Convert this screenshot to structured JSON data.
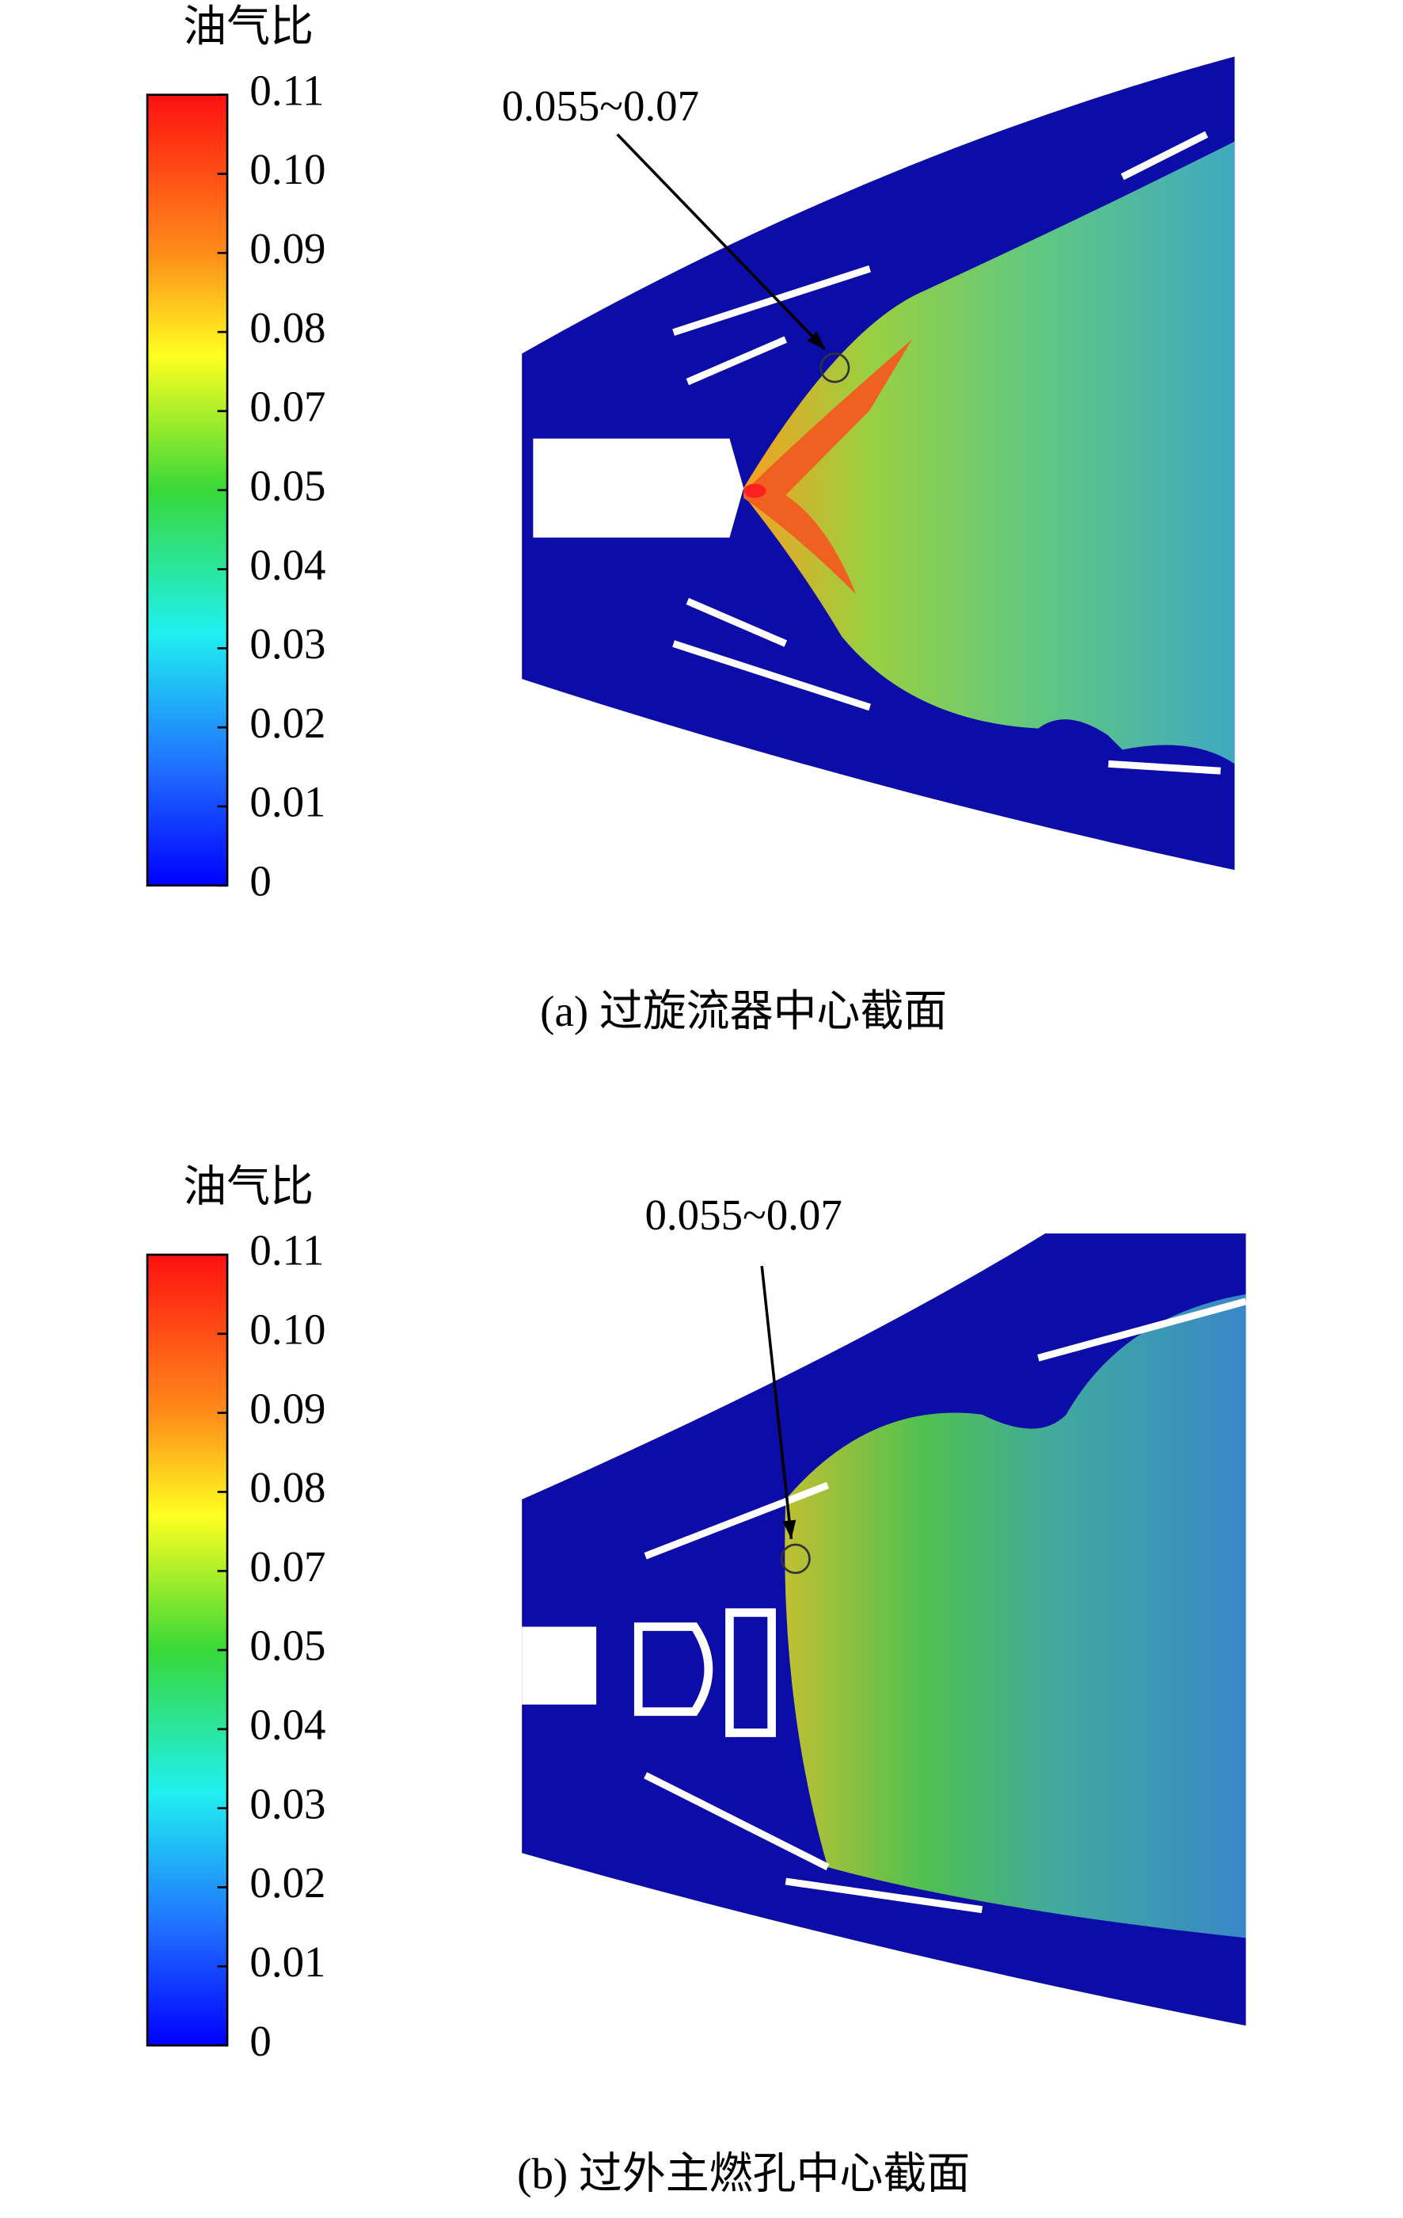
{
  "panels": [
    {
      "colorbar": {
        "title": "油气比",
        "ticks": [
          "0.11",
          "0.10",
          "0.09",
          "0.08",
          "0.07",
          "0.05",
          "0.04",
          "0.03",
          "0.02",
          "0.01",
          "0"
        ]
      },
      "annotation": "0.055~0.07",
      "caption": "(a) 过旋流器中心截面"
    },
    {
      "colorbar": {
        "title": "油气比",
        "ticks": [
          "0.11",
          "0.10",
          "0.09",
          "0.08",
          "0.07",
          "0.05",
          "0.04",
          "0.03",
          "0.02",
          "0.01",
          "0"
        ]
      },
      "annotation": "0.055~0.07",
      "caption": "(b) 过外主燃孔中心截面"
    }
  ]
}
